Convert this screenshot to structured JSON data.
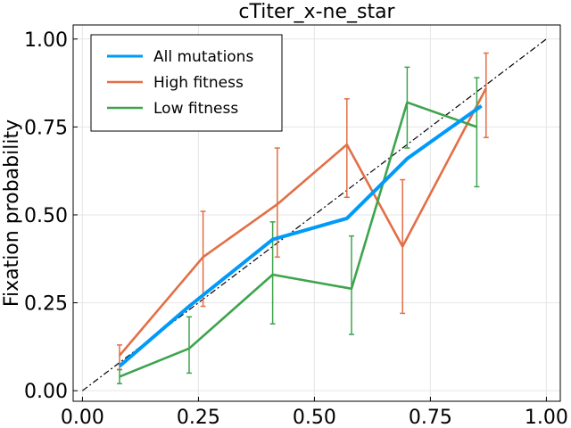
{
  "chart_data": {
    "type": "line",
    "title": "cTiter_x-ne_star",
    "xlabel": "",
    "ylabel": "Fixation probability",
    "xlim": [
      -0.02,
      1.03
    ],
    "ylim": [
      -0.03,
      1.04
    ],
    "x_ticks": [
      0.0,
      0.25,
      0.5,
      0.75,
      1.0
    ],
    "x_tick_labels": [
      "0.00",
      "0.25",
      "0.50",
      "0.75",
      "1.00"
    ],
    "y_ticks": [
      0.0,
      0.25,
      0.5,
      0.75,
      1.0
    ],
    "y_tick_labels": [
      "0.00",
      "0.25",
      "0.50",
      "0.75",
      "1.00"
    ],
    "grid": true,
    "legend_position": "top-left",
    "reference_line": {
      "x": [
        0,
        1
      ],
      "y": [
        0,
        1
      ],
      "color": "#000000",
      "style": "dash-dot"
    },
    "series": [
      {
        "name": "All mutations",
        "color": "#009af9",
        "x": [
          0.08,
          0.23,
          0.41,
          0.57,
          0.7,
          0.86
        ],
        "y": [
          0.07,
          0.24,
          0.43,
          0.49,
          0.66,
          0.81
        ],
        "error_bars": false
      },
      {
        "name": "High fitness",
        "color": "#e26f46",
        "x": [
          0.08,
          0.26,
          0.42,
          0.57,
          0.69,
          0.87
        ],
        "y": [
          0.1,
          0.38,
          0.53,
          0.7,
          0.41,
          0.86
        ],
        "lower": [
          0.06,
          0.24,
          0.38,
          0.55,
          0.22,
          0.72
        ],
        "upper": [
          0.13,
          0.51,
          0.69,
          0.83,
          0.6,
          0.96
        ],
        "error_bars": true
      },
      {
        "name": "Low fitness",
        "color": "#3da44d",
        "x": [
          0.08,
          0.23,
          0.41,
          0.58,
          0.7,
          0.85
        ],
        "y": [
          0.04,
          0.12,
          0.33,
          0.29,
          0.82,
          0.75
        ],
        "lower": [
          0.02,
          0.05,
          0.19,
          0.16,
          0.69,
          0.58
        ],
        "upper": [
          0.06,
          0.21,
          0.48,
          0.44,
          0.92,
          0.89
        ],
        "error_bars": true
      }
    ]
  }
}
